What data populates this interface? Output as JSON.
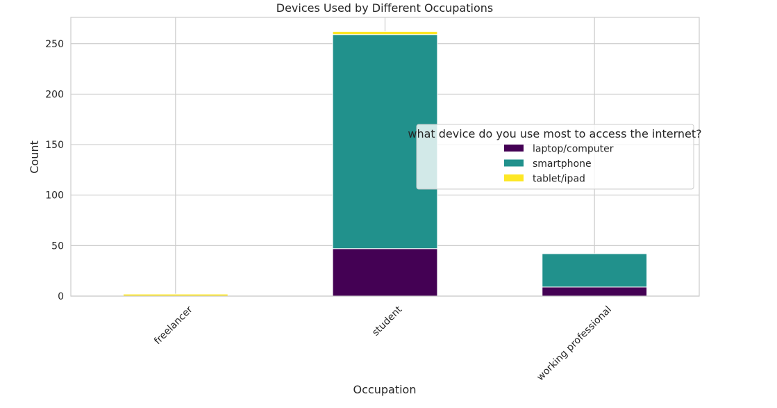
{
  "chart_data": {
    "type": "bar",
    "stacked": true,
    "title": "Devices Used by Different Occupations",
    "xlabel": "Occupation",
    "ylabel": "Count",
    "categories": [
      "freelancer",
      "student",
      "working professional"
    ],
    "series": [
      {
        "name": "laptop/computer",
        "color": "#440154",
        "values": [
          0,
          47,
          9
        ]
      },
      {
        "name": "smartphone",
        "color": "#21918c",
        "values": [
          0,
          212,
          33
        ]
      },
      {
        "name": "tablet/ipad",
        "color": "#fde725",
        "values": [
          2,
          3,
          0
        ]
      }
    ],
    "ylim": [
      0,
      276
    ],
    "yticks": [
      0,
      50,
      100,
      150,
      200,
      250
    ],
    "grid": true,
    "legend": {
      "title": "what device do you use most to access the internet?",
      "placement": "center-right"
    }
  }
}
